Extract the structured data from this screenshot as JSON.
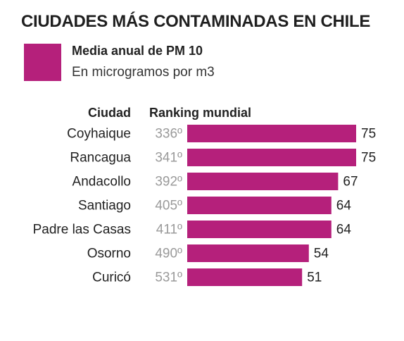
{
  "title": "CIUDADES MÁS CONTAMINADAS EN CHILE",
  "legend": {
    "title": "Media anual de PM 10",
    "subtitle": "En microgramos por m3"
  },
  "columns": {
    "city": "Ciudad",
    "ranking": "Ranking mundial"
  },
  "colors": {
    "bar": "#b5207b",
    "rank_text": "#9a9a9a",
    "label_text": "#222222"
  },
  "chart_data": {
    "type": "bar",
    "orientation": "horizontal",
    "categories": [
      "Coyhaique",
      "Rancagua",
      "Andacollo",
      "Santiago",
      "Padre las Casas",
      "Osorno",
      "Curicó"
    ],
    "values": [
      75,
      75,
      67,
      64,
      64,
      54,
      51
    ],
    "ranking": [
      "336º",
      "341º",
      "392º",
      "405º",
      "411º",
      "490º",
      "531º"
    ],
    "title": "CIUDADES MÁS CONTAMINADAS EN CHILE",
    "xlabel": "",
    "ylabel": "",
    "grid": false
  }
}
